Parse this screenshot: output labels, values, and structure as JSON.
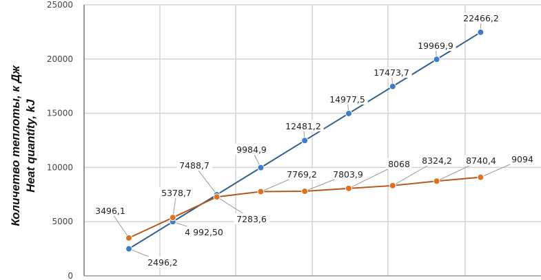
{
  "chart_data": {
    "type": "line",
    "title": "",
    "xlabel": "",
    "ylabel": [
      "Количетво теплоты, к Дж",
      "Heat quantity, kJ"
    ],
    "ylim": [
      0,
      25000
    ],
    "yticks": [
      "0",
      "5000",
      "10000",
      "15000",
      "20000",
      "25000"
    ],
    "grid": true,
    "series": [
      {
        "color": "#3d7cc9",
        "line_color": "#2f5f8f",
        "values": [
          2496.2,
          4992.5,
          7488.7,
          9984.9,
          12481.2,
          14977.5,
          17473.7,
          19969.9,
          22466.2
        ],
        "labels": [
          "2496,2",
          "4 992,50",
          "7488,7",
          "9984,9",
          "12481,2",
          "14977,5",
          "17473,7",
          "19969,9",
          "22466,2"
        ]
      },
      {
        "color": "#e0701f",
        "line_color": "#b5561a",
        "values": [
          3496.1,
          5378.7,
          7283.6,
          7769.2,
          7803.9,
          8068,
          8324.2,
          8740.4,
          9094
        ],
        "labels": [
          "3496,1",
          "5378,7",
          "7283,6",
          "7769,2",
          "7803,9",
          "8068",
          "8324,2",
          "8740,4",
          "9094"
        ]
      }
    ]
  }
}
